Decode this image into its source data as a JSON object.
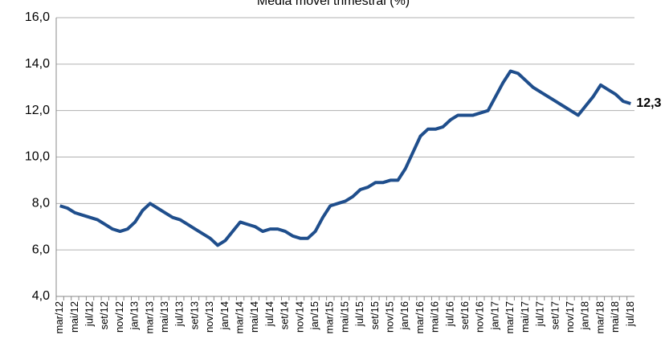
{
  "chart_data": {
    "type": "line",
    "title": "Média móvel trimestral (%)",
    "categories": [
      "mar/12",
      null,
      "mai/12",
      null,
      "jul/12",
      null,
      "set/12",
      null,
      "nov/12",
      null,
      "jan/13",
      null,
      "mar/13",
      null,
      "mai/13",
      null,
      "jul/13",
      null,
      "set/13",
      null,
      "nov/13",
      null,
      "jan/14",
      null,
      "mar/14",
      null,
      "mai/14",
      null,
      "jul/14",
      null,
      "set/14",
      null,
      "nov/14",
      null,
      "jan/15",
      null,
      "mar/15",
      null,
      "mai/15",
      null,
      "jul/15",
      null,
      "set/15",
      null,
      "nov/15",
      null,
      "jan/16",
      null,
      "mar/16",
      null,
      "mai/16",
      null,
      "jul/16",
      null,
      "set/16",
      null,
      "nov/16",
      null,
      "jan/17",
      null,
      "mar/17",
      null,
      "mai/17",
      null,
      "jul/17",
      null,
      "set/17",
      null,
      "nov/17",
      null,
      "jan/18",
      null,
      "mar/18",
      null,
      "mai/18",
      null,
      "jul/18"
    ],
    "values": [
      7.9,
      7.8,
      7.6,
      7.5,
      7.4,
      7.3,
      7.1,
      6.9,
      6.8,
      6.9,
      7.2,
      7.7,
      8.0,
      7.8,
      7.6,
      7.4,
      7.3,
      7.1,
      6.9,
      6.7,
      6.5,
      6.2,
      6.4,
      6.8,
      7.2,
      7.1,
      7.0,
      6.8,
      6.9,
      6.9,
      6.8,
      6.6,
      6.5,
      6.5,
      6.8,
      7.4,
      7.9,
      8.0,
      8.1,
      8.3,
      8.6,
      8.7,
      8.9,
      8.9,
      9.0,
      9.0,
      9.5,
      10.2,
      10.9,
      11.2,
      11.2,
      11.3,
      11.6,
      11.8,
      11.8,
      11.8,
      11.9,
      12.0,
      12.6,
      13.2,
      13.7,
      13.6,
      13.3,
      13.0,
      12.8,
      12.6,
      12.4,
      12.2,
      12.0,
      11.8,
      12.2,
      12.6,
      13.1,
      12.9,
      12.7,
      12.4,
      12.3
    ],
    "value_labels": [
      null,
      null,
      null,
      null,
      null,
      null,
      null,
      null,
      null,
      null,
      null,
      null,
      null,
      null,
      null,
      null,
      null,
      null,
      null,
      null,
      null,
      null,
      null,
      null,
      null,
      null,
      null,
      null,
      null,
      null,
      null,
      null,
      null,
      null,
      null,
      null,
      null,
      null,
      null,
      null,
      null,
      null,
      null,
      null,
      null,
      null,
      null,
      null,
      null,
      null,
      null,
      null,
      null,
      null,
      null,
      null,
      null,
      null,
      null,
      null,
      null,
      null,
      null,
      null,
      null,
      null,
      null,
      null,
      null,
      null,
      null,
      null,
      null,
      null,
      null,
      null,
      "12,3"
    ],
    "color": "#1f4e8c",
    "ylim": [
      4,
      16
    ],
    "yticks": [
      {
        "value": 4,
        "label": "4,0"
      },
      {
        "value": 6,
        "label": "6,0"
      },
      {
        "value": 8,
        "label": "8,0"
      },
      {
        "value": 10,
        "label": "10,0"
      },
      {
        "value": 12,
        "label": "12,0"
      },
      {
        "value": 14,
        "label": "14,0"
      },
      {
        "value": 16,
        "label": "16,0"
      }
    ],
    "grid": true
  }
}
